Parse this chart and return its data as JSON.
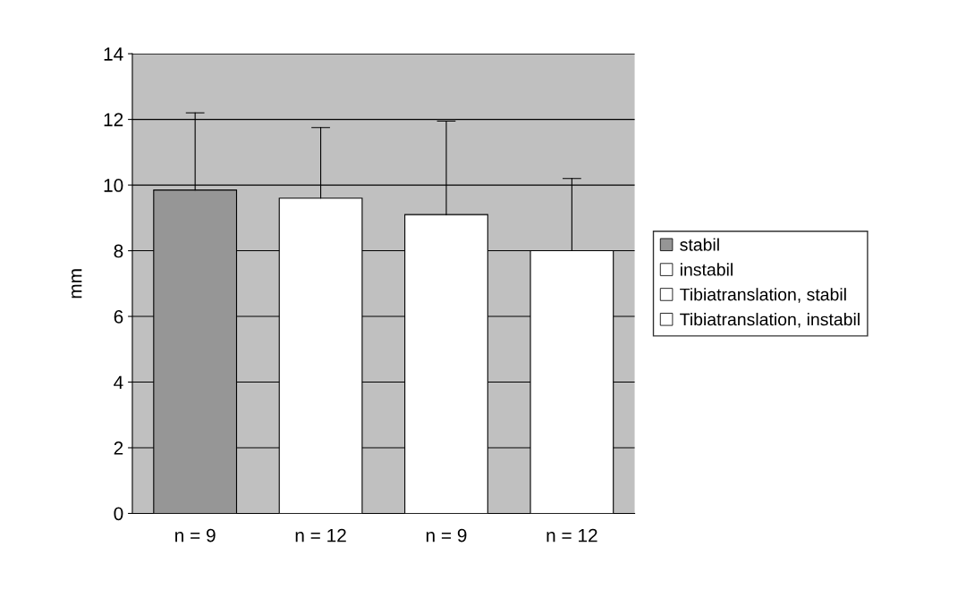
{
  "chart_data": {
    "type": "bar",
    "ylabel": "mm",
    "categories": [
      "n = 9",
      "n = 12",
      "n = 9",
      "n = 12"
    ],
    "series": [
      {
        "name": "stabil",
        "color": "#969696",
        "values": [
          9.85,
          null,
          null,
          null
        ],
        "errors": [
          [
            9.85,
            12.2
          ],
          null,
          null,
          null
        ]
      },
      {
        "name": "instabil",
        "color": "#ffffff",
        "values": [
          null,
          9.6,
          null,
          null
        ],
        "errors": [
          null,
          [
            9.6,
            11.75
          ],
          null,
          null
        ]
      },
      {
        "name": "Tibiatranslation, stabil",
        "color": "#ffffff",
        "values": [
          null,
          null,
          9.1,
          null
        ],
        "errors": [
          null,
          null,
          [
            9.1,
            11.95
          ],
          null
        ]
      },
      {
        "name": "Tibiatranslation, instabil",
        "color": "#ffffff",
        "values": [
          null,
          null,
          null,
          8.0
        ],
        "errors": [
          null,
          null,
          null,
          [
            8.0,
            10.2
          ]
        ]
      }
    ],
    "ylim": [
      0,
      14
    ],
    "yticks": [
      0,
      2,
      4,
      6,
      8,
      10,
      12,
      14
    ],
    "grid": "y",
    "legend": "right"
  }
}
